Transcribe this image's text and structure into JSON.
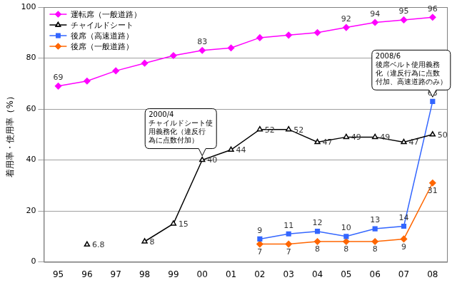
{
  "chart_data": {
    "type": "line",
    "y_label": "着用率・使用率（%）",
    "categories": [
      "95",
      "96",
      "97",
      "98",
      "99",
      "00",
      "01",
      "02",
      "03",
      "04",
      "05",
      "06",
      "07",
      "08"
    ],
    "ylim": [
      0,
      100
    ],
    "yticks": [
      0,
      20,
      40,
      60,
      80,
      100
    ],
    "grid": true,
    "legend": "upper left",
    "data_labels": true,
    "series": [
      {
        "name": "運転席（一般道路）",
        "color": "#ff00ff",
        "marker": "diamond",
        "values": [
          69,
          71,
          75,
          78,
          81,
          83,
          84,
          88,
          89,
          90,
          92,
          94,
          95,
          96
        ],
        "value_labels": [
          "69",
          null,
          null,
          null,
          null,
          "83",
          null,
          null,
          null,
          null,
          "92",
          "94",
          "95",
          "96"
        ]
      },
      {
        "name": "チャイルドシート",
        "color": "#000000",
        "marker": "open_triangle",
        "values": [
          null,
          6.8,
          null,
          8,
          15,
          40,
          44,
          52,
          52,
          47,
          49,
          49,
          47,
          50
        ]
      },
      {
        "name": "後席（高速道路）",
        "color": "#3366ff",
        "marker": "square",
        "values": [
          null,
          null,
          null,
          null,
          null,
          null,
          null,
          9,
          11,
          12,
          10,
          13,
          14,
          63
        ]
      },
      {
        "name": "後席（一般道路）",
        "color": "#ff6600",
        "marker": "diamond",
        "values": [
          null,
          null,
          null,
          null,
          null,
          null,
          null,
          7,
          7,
          8,
          8,
          8,
          9,
          31
        ]
      }
    ],
    "annotations": [
      {
        "series": "チャイルドシート",
        "category": "00",
        "lines": [
          "2000/4",
          "チャイルドシート使",
          "用義務化（違反行",
          "為に点数付加）"
        ]
      },
      {
        "series": "後席（高速道路）",
        "category": "08",
        "lines": [
          "2008/6",
          "後席ベルト使用義務",
          "化（違反行為に点数",
          "付加、高速道路のみ）"
        ]
      }
    ]
  }
}
